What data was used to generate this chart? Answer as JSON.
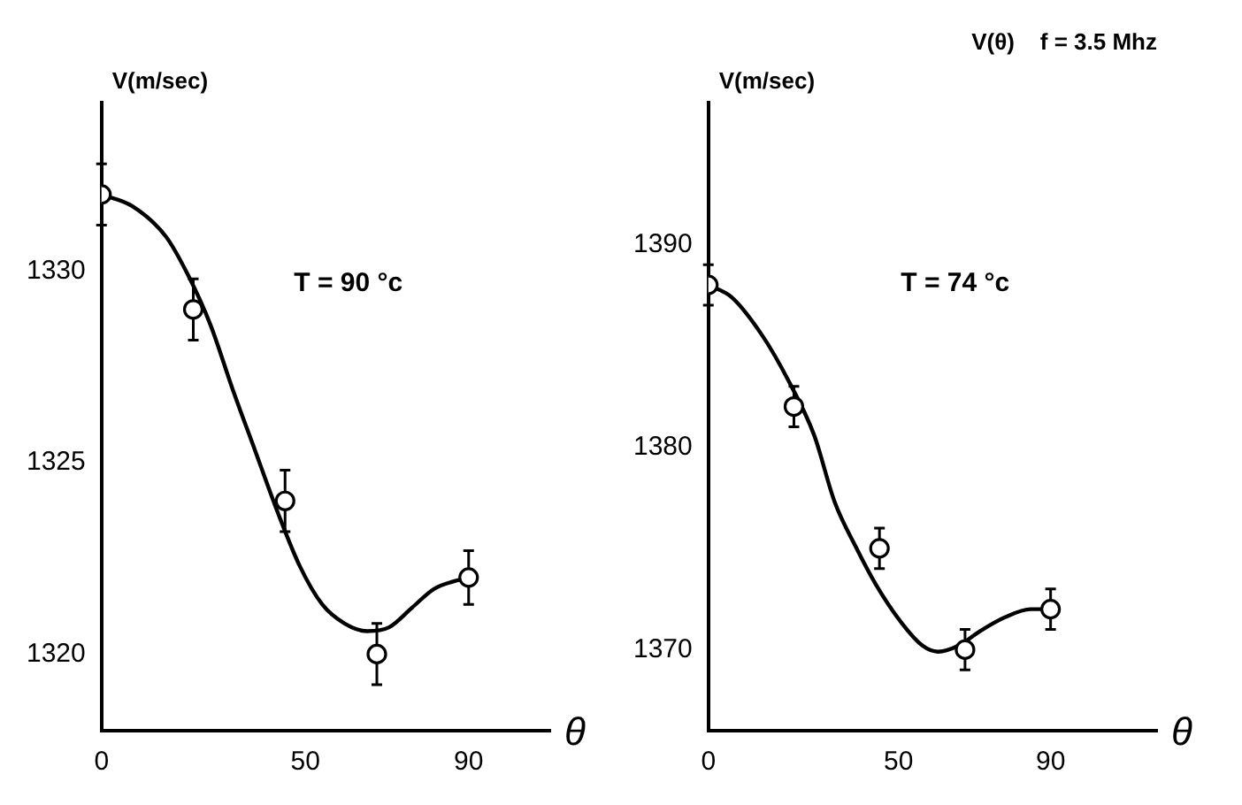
{
  "chart_data": [
    {
      "type": "scatter",
      "ylabel": "V(m/sec)",
      "xlabel": "θ",
      "annotations": [
        "T = 90 °c"
      ],
      "xlim": [
        0,
        110
      ],
      "xticks": [
        0,
        50,
        90
      ],
      "ylim": [
        1318,
        1334.4
      ],
      "yticks": [
        1320,
        1325,
        1330
      ],
      "series": [
        {
          "type": "scatter",
          "color": "#000000",
          "marker": "circle",
          "x": [
            0,
            22.5,
            45,
            67.5,
            90
          ],
          "values": [
            1332,
            1329,
            1324,
            1320,
            1322
          ],
          "errors": [
            0.8,
            0.8,
            0.8,
            0.8,
            0.7
          ]
        },
        {
          "type": "line",
          "color": "#000000",
          "marker": "none",
          "x": [
            0,
            7.5,
            15.8,
            21.2,
            26.7,
            32.2,
            37.7,
            43.2,
            48.6,
            54.1,
            59.6,
            65.1,
            70.5,
            76,
            81.5,
            89.7
          ],
          "values": [
            1332,
            1331.7,
            1330.9,
            1329.9,
            1328.6,
            1326.9,
            1325.3,
            1323.7,
            1322.3,
            1321.3,
            1320.8,
            1320.6,
            1320.7,
            1321.2,
            1321.7,
            1322
          ]
        }
      ]
    },
    {
      "type": "scatter",
      "title": "V(θ)    f = 3.5 Mhz",
      "ylabel": "V(m/sec)",
      "xlabel": "θ",
      "annotations": [
        "T = 74 °c"
      ],
      "xlim": [
        0,
        118
      ],
      "xticks": [
        0,
        50,
        90
      ],
      "ylim": [
        1366,
        1397
      ],
      "yticks": [
        1370,
        1380,
        1390
      ],
      "series": [
        {
          "type": "scatter",
          "color": "#000000",
          "marker": "circle",
          "x": [
            0,
            22.5,
            45,
            67.5,
            90
          ],
          "values": [
            1388,
            1382,
            1375,
            1370,
            1372
          ],
          "errors": [
            1,
            1,
            1,
            1,
            1
          ]
        },
        {
          "type": "line",
          "color": "#000000",
          "marker": "none",
          "x": [
            0,
            6.1,
            14.2,
            21,
            27.8,
            33.2,
            38.7,
            44.1,
            50.9,
            56.3,
            60.4,
            65.8,
            71.3,
            78,
            84.8,
            90.2
          ],
          "values": [
            1388,
            1387.4,
            1385.5,
            1383.3,
            1380.6,
            1377.3,
            1375.1,
            1373.2,
            1371.3,
            1370.2,
            1369.9,
            1370.2,
            1370.9,
            1371.6,
            1372,
            1372
          ]
        }
      ]
    }
  ]
}
